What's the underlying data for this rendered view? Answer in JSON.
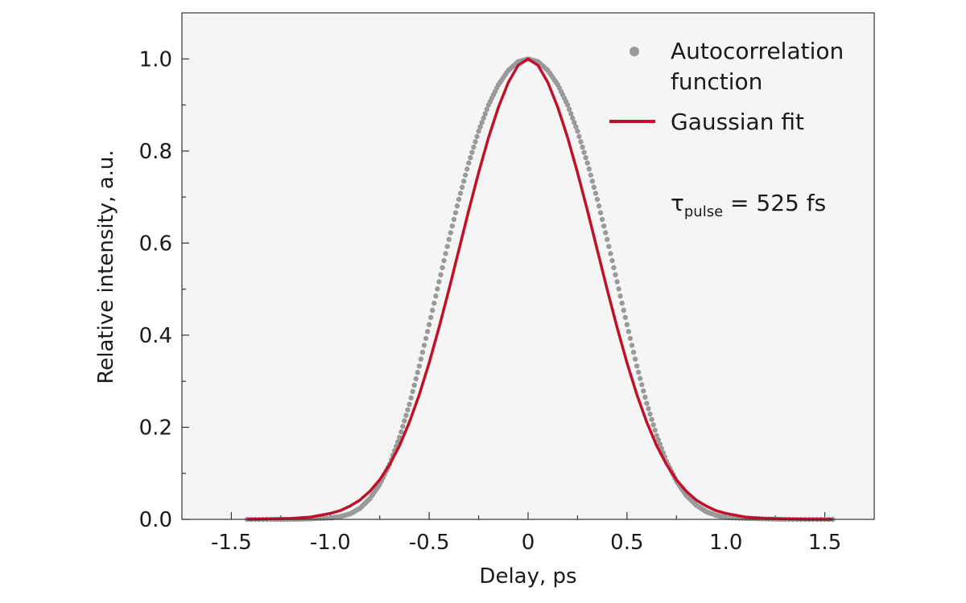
{
  "chart_data": {
    "type": "line",
    "title": "",
    "xlabel": "Delay, ps",
    "ylabel": "Relative intensity, a.u.",
    "xlim": [
      -1.75,
      1.75
    ],
    "ylim": [
      0,
      1.1
    ],
    "grid": false,
    "background": "#f5f5f5",
    "x_ticks": [
      -1.5,
      -1.0,
      -0.5,
      0,
      0.5,
      1.0,
      1.5
    ],
    "x_tick_labels": [
      "-1.5",
      "-1.0",
      "-0.5",
      "0",
      "0.5",
      "1.0",
      "1.5"
    ],
    "y_ticks": [
      0,
      0.2,
      0.4,
      0.6,
      0.8,
      1.0
    ],
    "y_tick_labels": [
      "0.0",
      "0.2",
      "0.4",
      "0.6",
      "0.8",
      "1.0"
    ],
    "legend": {
      "placement": "top-right",
      "entries": [
        {
          "label_line1": "Autocorrelation",
          "label_line2": "function",
          "marker": "dot"
        },
        {
          "label": "Gaussian fit",
          "marker": "line"
        }
      ]
    },
    "annotation": {
      "symbol": "τ",
      "subscript": "pulse",
      "text": " = 525 fs"
    },
    "series": [
      {
        "name": "Autocorrelation function",
        "kind": "points",
        "color": "#9a9a9a",
        "x": [
          -1.42,
          -1.3,
          -1.2,
          -1.1,
          -1.0,
          -0.95,
          -0.9,
          -0.85,
          -0.8,
          -0.75,
          -0.7,
          -0.65,
          -0.6,
          -0.55,
          -0.5,
          -0.45,
          -0.4,
          -0.35,
          -0.3,
          -0.25,
          -0.2,
          -0.15,
          -0.1,
          -0.05,
          0,
          0.05,
          0.1,
          0.15,
          0.2,
          0.25,
          0.3,
          0.35,
          0.4,
          0.45,
          0.5,
          0.55,
          0.6,
          0.65,
          0.7,
          0.75,
          0.8,
          0.85,
          0.9,
          0.95,
          1.0,
          1.1,
          1.2,
          1.3,
          1.42,
          1.54
        ],
        "y": [
          0.0,
          0.0,
          0.0,
          0.001,
          0.003,
          0.006,
          0.012,
          0.024,
          0.045,
          0.076,
          0.12,
          0.178,
          0.25,
          0.333,
          0.423,
          0.516,
          0.608,
          0.695,
          0.774,
          0.843,
          0.9,
          0.944,
          0.975,
          0.994,
          1.0,
          0.994,
          0.975,
          0.944,
          0.9,
          0.843,
          0.774,
          0.695,
          0.608,
          0.516,
          0.423,
          0.333,
          0.252,
          0.182,
          0.126,
          0.083,
          0.052,
          0.031,
          0.017,
          0.009,
          0.004,
          0.002,
          0.001,
          0.0,
          0.0,
          0.0
        ]
      },
      {
        "name": "Gaussian fit",
        "kind": "line",
        "color": "#c0102b",
        "x": [
          -1.42,
          -1.3,
          -1.2,
          -1.1,
          -1.0,
          -0.95,
          -0.9,
          -0.85,
          -0.8,
          -0.75,
          -0.7,
          -0.65,
          -0.6,
          -0.55,
          -0.5,
          -0.45,
          -0.4,
          -0.35,
          -0.3,
          -0.25,
          -0.2,
          -0.15,
          -0.1,
          -0.05,
          0,
          0.05,
          0.1,
          0.15,
          0.2,
          0.25,
          0.3,
          0.35,
          0.4,
          0.45,
          0.5,
          0.55,
          0.6,
          0.65,
          0.7,
          0.75,
          0.8,
          0.85,
          0.9,
          0.95,
          1.0,
          1.1,
          1.2,
          1.3,
          1.42,
          1.54
        ],
        "y": [
          0.0,
          0.001,
          0.002,
          0.005,
          0.013,
          0.019,
          0.029,
          0.042,
          0.061,
          0.086,
          0.119,
          0.16,
          0.211,
          0.271,
          0.34,
          0.417,
          0.499,
          0.585,
          0.671,
          0.753,
          0.829,
          0.895,
          0.949,
          0.986,
          1.0,
          0.986,
          0.949,
          0.895,
          0.829,
          0.753,
          0.671,
          0.585,
          0.499,
          0.417,
          0.34,
          0.271,
          0.211,
          0.16,
          0.119,
          0.086,
          0.061,
          0.042,
          0.029,
          0.019,
          0.013,
          0.005,
          0.002,
          0.001,
          0.0,
          0.0
        ]
      }
    ]
  }
}
